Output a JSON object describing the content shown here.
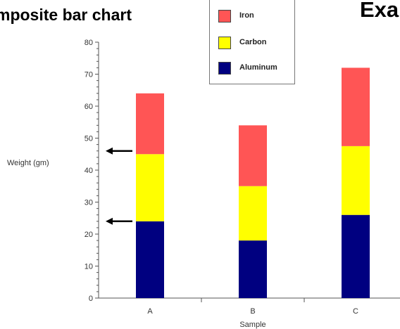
{
  "headings": {
    "left": "mposite bar chart",
    "right": "Exa"
  },
  "colors": {
    "iron": "#ff5555",
    "carbon": "#ffff00",
    "aluminum": "#000080",
    "arrow": "#000000",
    "axis": "#555555"
  },
  "chart_data": {
    "type": "bar",
    "stacked": true,
    "categories": [
      "A",
      "B",
      "C"
    ],
    "series": [
      {
        "name": "Aluminum",
        "values": [
          24,
          18,
          26
        ],
        "color": "#000080"
      },
      {
        "name": "Carbon",
        "values": [
          21,
          17,
          21.5
        ],
        "color": "#ffff00"
      },
      {
        "name": "Iron",
        "values": [
          19,
          19,
          24.5
        ],
        "color": "#ff5555"
      }
    ],
    "legend_order": [
      "Iron",
      "Carbon",
      "Aluminum"
    ],
    "xlabel": "Sample",
    "ylabel": "Weight (gm)",
    "ylim": [
      0,
      80
    ],
    "yticks": [
      0,
      10,
      20,
      30,
      40,
      50,
      60,
      70,
      80
    ],
    "legend_position": "top-center",
    "grid": false,
    "annotations": [
      {
        "type": "arrow",
        "y": 46,
        "direction": "left"
      },
      {
        "type": "arrow",
        "y": 24,
        "direction": "left"
      }
    ]
  }
}
